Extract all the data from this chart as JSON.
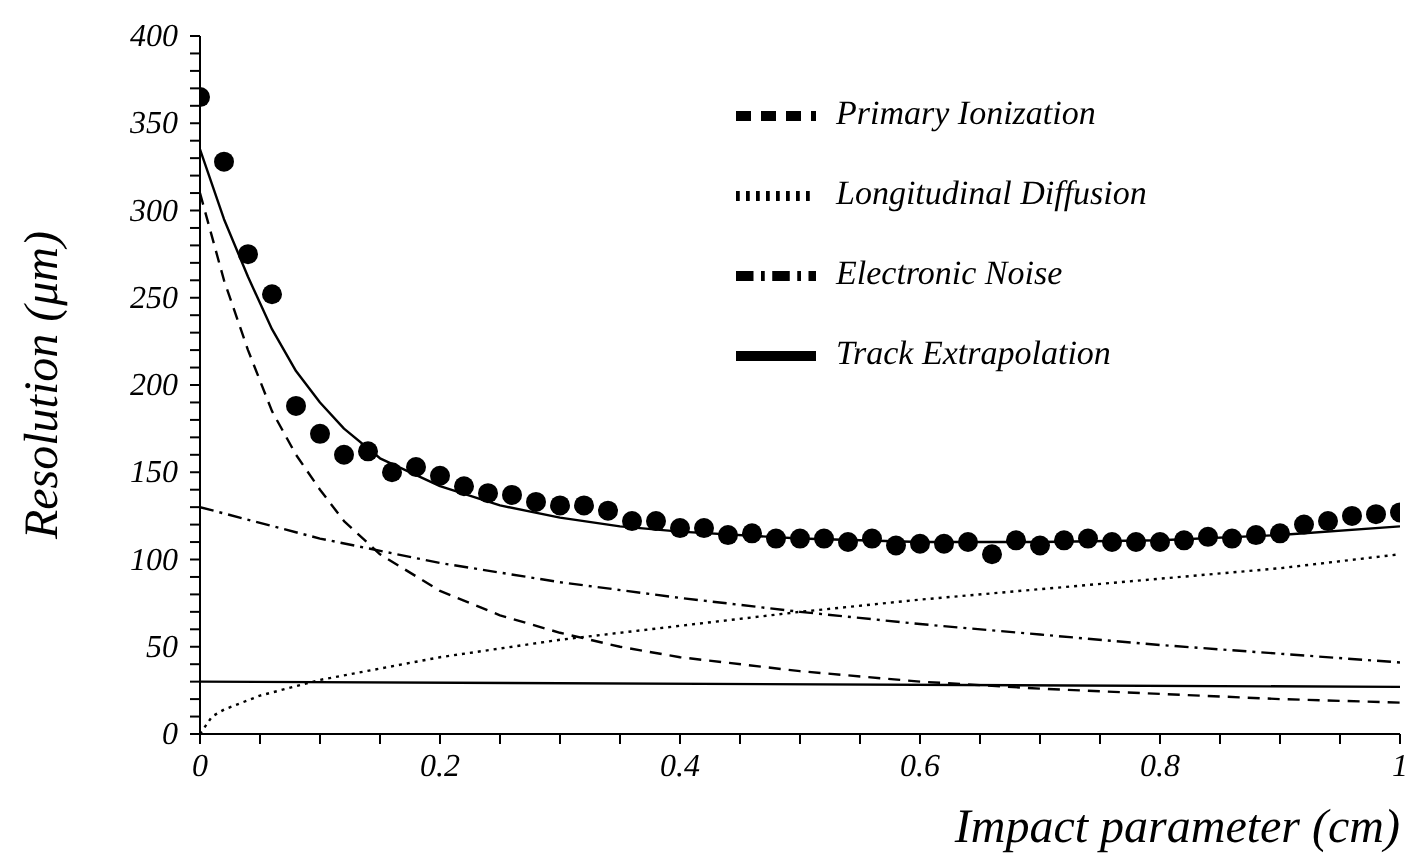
{
  "chart_data": {
    "type": "line",
    "xlabel": "Impact parameter (cm)",
    "ylabel": "Resolution (μm)",
    "xlim": [
      0,
      1
    ],
    "ylim": [
      0,
      400
    ],
    "xticks": [
      0,
      {
        "value": 0.05,
        "label": null
      },
      0.2,
      {
        "value": 0.1,
        "label": null
      },
      {
        "value": 0.15,
        "label": null
      },
      {
        "value": 0.25,
        "label": null
      },
      {
        "value": 0.3,
        "label": null
      },
      {
        "value": 0.35,
        "label": null
      },
      0.4,
      {
        "value": 0.45,
        "label": null
      },
      {
        "value": 0.5,
        "label": null
      },
      {
        "value": 0.55,
        "label": null
      },
      0.6,
      {
        "value": 0.65,
        "label": null
      },
      {
        "value": 0.7,
        "label": null
      },
      {
        "value": 0.75,
        "label": null
      },
      0.8,
      {
        "value": 0.85,
        "label": null
      },
      {
        "value": 0.9,
        "label": null
      },
      {
        "value": 0.95,
        "label": null
      },
      1
    ],
    "yticks": [
      0,
      {
        "value": 10,
        "label": null
      },
      {
        "value": 20,
        "label": null
      },
      {
        "value": 30,
        "label": null
      },
      {
        "value": 40,
        "label": null
      },
      50,
      {
        "value": 60,
        "label": null
      },
      {
        "value": 70,
        "label": null
      },
      {
        "value": 80,
        "label": null
      },
      {
        "value": 90,
        "label": null
      },
      100,
      {
        "value": 110,
        "label": null
      },
      {
        "value": 120,
        "label": null
      },
      {
        "value": 130,
        "label": null
      },
      {
        "value": 140,
        "label": null
      },
      150,
      {
        "value": 160,
        "label": null
      },
      {
        "value": 170,
        "label": null
      },
      {
        "value": 180,
        "label": null
      },
      {
        "value": 190,
        "label": null
      },
      200,
      {
        "value": 210,
        "label": null
      },
      {
        "value": 220,
        "label": null
      },
      {
        "value": 230,
        "label": null
      },
      {
        "value": 240,
        "label": null
      },
      250,
      {
        "value": 260,
        "label": null
      },
      {
        "value": 270,
        "label": null
      },
      {
        "value": 280,
        "label": null
      },
      {
        "value": 290,
        "label": null
      },
      300,
      {
        "value": 310,
        "label": null
      },
      {
        "value": 320,
        "label": null
      },
      {
        "value": 330,
        "label": null
      },
      {
        "value": 340,
        "label": null
      },
      350,
      {
        "value": 360,
        "label": null
      },
      {
        "value": 370,
        "label": null
      },
      {
        "value": 380,
        "label": null
      },
      {
        "value": 390,
        "label": null
      },
      400
    ],
    "grid": false,
    "legend": "top right",
    "series": [
      {
        "type": "scatter",
        "marker": "circle",
        "color": "#000000",
        "x": [
          0,
          0.02,
          0.04,
          0.06,
          0.08,
          0.1,
          0.12,
          0.14,
          0.16,
          0.18,
          0.2,
          0.22,
          0.24,
          0.26,
          0.28,
          0.3,
          0.32,
          0.34,
          0.36,
          0.38,
          0.4,
          0.42,
          0.44,
          0.46,
          0.48,
          0.5,
          0.52,
          0.54,
          0.56,
          0.58,
          0.6,
          0.62,
          0.64,
          0.66,
          0.68,
          0.7,
          0.72,
          0.74,
          0.76,
          0.78,
          0.8,
          0.82,
          0.84,
          0.86,
          0.88,
          0.9,
          0.92,
          0.94,
          0.96,
          0.98,
          1
        ],
        "values": [
          365,
          328,
          275,
          252,
          188,
          172,
          160,
          162,
          150,
          153,
          148,
          142,
          138,
          137,
          133,
          131,
          131,
          128,
          122,
          122,
          118,
          118,
          114,
          115,
          112,
          112,
          112,
          110,
          112,
          108,
          109,
          109,
          110,
          103,
          111,
          108,
          111,
          112,
          110,
          110,
          110,
          111,
          113,
          112,
          114,
          115,
          120,
          122,
          125,
          126,
          127
        ]
      },
      {
        "type": "line",
        "line_style": "solid",
        "color": "#000000",
        "x": [
          0,
          0.02,
          0.04,
          0.06,
          0.08,
          0.1,
          0.12,
          0.15,
          0.2,
          0.25,
          0.3,
          0.35,
          0.4,
          0.5,
          0.6,
          0.7,
          0.8,
          0.9,
          1
        ],
        "values": [
          335,
          295,
          262,
          232,
          208,
          190,
          175,
          158,
          142,
          131,
          124,
          119,
          116,
          112,
          110,
          110,
          111,
          114,
          119
        ]
      },
      {
        "type": "line",
        "name": "Primary Ionization",
        "line_style": "dashed",
        "color": "#000000",
        "x": [
          0,
          0.02,
          0.04,
          0.06,
          0.08,
          0.1,
          0.12,
          0.15,
          0.2,
          0.25,
          0.3,
          0.35,
          0.4,
          0.5,
          0.6,
          0.7,
          0.8,
          0.9,
          1
        ],
        "values": [
          310,
          260,
          220,
          185,
          160,
          140,
          122,
          103,
          82,
          68,
          58,
          50,
          44,
          36,
          30,
          26,
          23,
          20,
          18
        ]
      },
      {
        "type": "line",
        "name": "Longitudinal Diffusion",
        "line_style": "dotted",
        "color": "#000000",
        "x": [
          0,
          0.01,
          0.02,
          0.05,
          0.1,
          0.2,
          0.3,
          0.4,
          0.5,
          0.6,
          0.7,
          0.8,
          0.9,
          1
        ],
        "values": [
          0,
          10,
          14,
          22,
          31,
          44,
          54,
          62,
          70,
          77,
          83,
          89,
          95,
          103
        ]
      },
      {
        "type": "line",
        "name": "Electronic Noise",
        "line_style": "dashdot",
        "color": "#000000",
        "x": [
          0,
          0.1,
          0.2,
          0.3,
          0.4,
          0.5,
          0.6,
          0.7,
          0.8,
          0.9,
          1
        ],
        "values": [
          130,
          112,
          98,
          87,
          78,
          70,
          63,
          57,
          51,
          46,
          41
        ]
      },
      {
        "type": "line",
        "name": "Track Extrapolation",
        "line_style": "solid",
        "color": "#000000",
        "x": [
          0,
          1
        ],
        "values": [
          30,
          27
        ]
      }
    ]
  }
}
